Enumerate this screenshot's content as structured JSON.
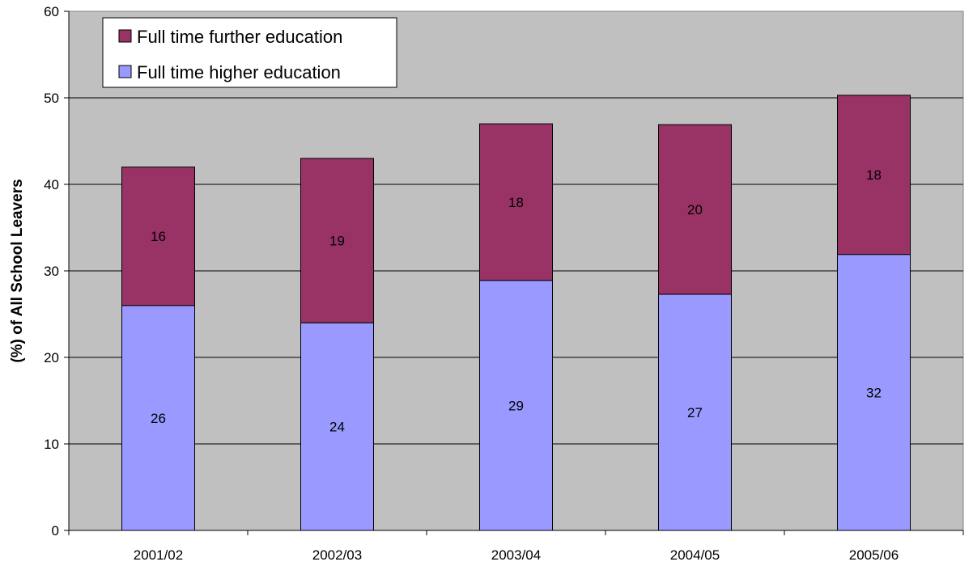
{
  "chart_data": {
    "type": "bar",
    "stacked": true,
    "title": "",
    "xlabel": "",
    "ylabel": "(%) of All School Leavers",
    "categories": [
      "2001/02",
      "2002/03",
      "2003/04",
      "2004/05",
      "2005/06"
    ],
    "ylim": [
      0,
      60
    ],
    "yticks": [
      0,
      10,
      20,
      30,
      40,
      50,
      60
    ],
    "grid": true,
    "legend_position": "top-left",
    "plot_background": "#c0c0c0",
    "series": [
      {
        "name": "Full time higher education",
        "values": [
          26,
          24,
          28.9,
          27.3,
          31.9
        ],
        "labels": [
          "26",
          "24",
          "29",
          "27",
          "32"
        ],
        "color": "#9999ff"
      },
      {
        "name": "Full time further education",
        "values": [
          16,
          19,
          18.1,
          19.6,
          18.4
        ],
        "labels": [
          "16",
          "19",
          "18",
          "20",
          "18"
        ],
        "color": "#993366"
      }
    ]
  }
}
